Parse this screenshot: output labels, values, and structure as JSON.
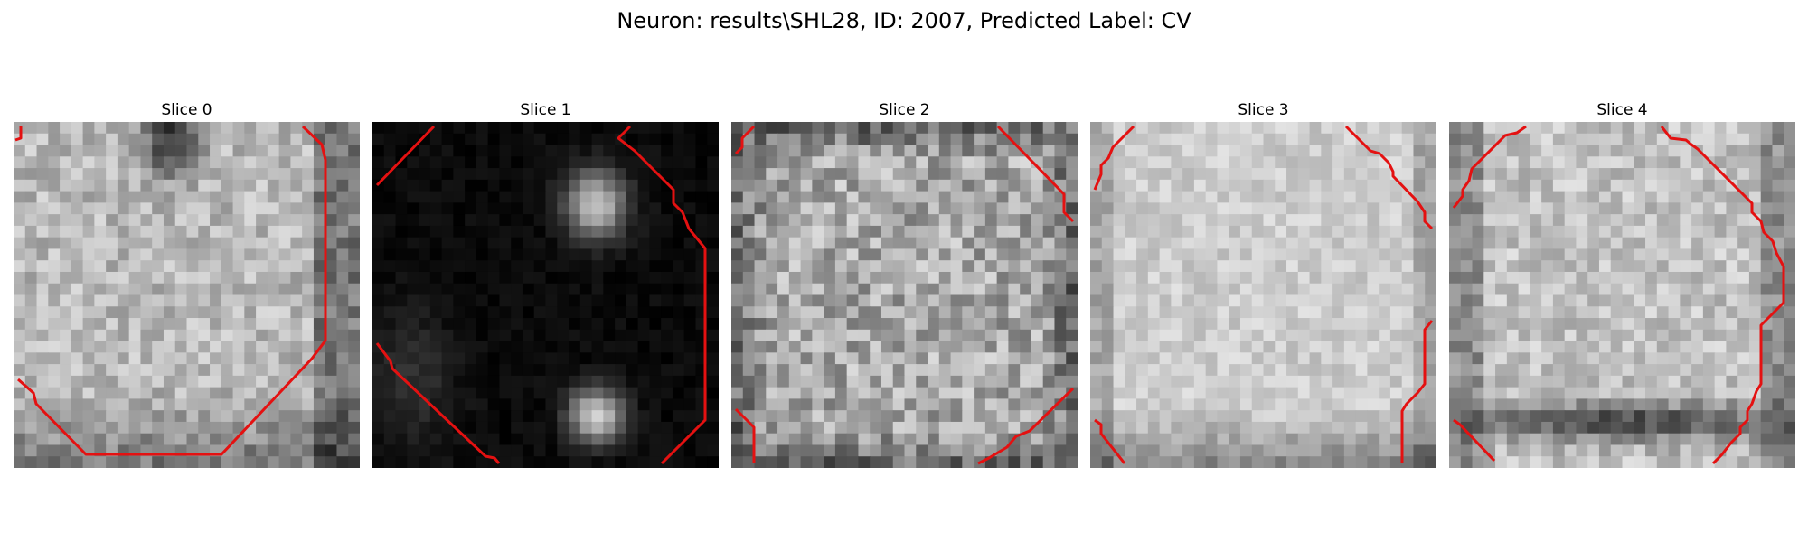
{
  "figure": {
    "title": "Neuron: results\\SHL28, ID: 2007, Predicted Label: CV",
    "contour_color": "#ff0000",
    "colormap": "gray",
    "panels": [
      {
        "label": "Slice 0",
        "seed": 11,
        "base": 0.72,
        "noise": 0.14,
        "style": "bright-dark-top"
      },
      {
        "label": "Slice 1",
        "seed": 23,
        "base": 0.04,
        "noise": 0.04,
        "style": "dark-two-blobs"
      },
      {
        "label": "Slice 2",
        "seed": 37,
        "base": 0.66,
        "noise": 0.2,
        "style": "noisy"
      },
      {
        "label": "Slice 3",
        "seed": 41,
        "base": 0.8,
        "noise": 0.09,
        "style": "bright-oval"
      },
      {
        "label": "Slice 4",
        "seed": 59,
        "base": 0.76,
        "noise": 0.13,
        "style": "bright-dark-bottom"
      }
    ]
  }
}
